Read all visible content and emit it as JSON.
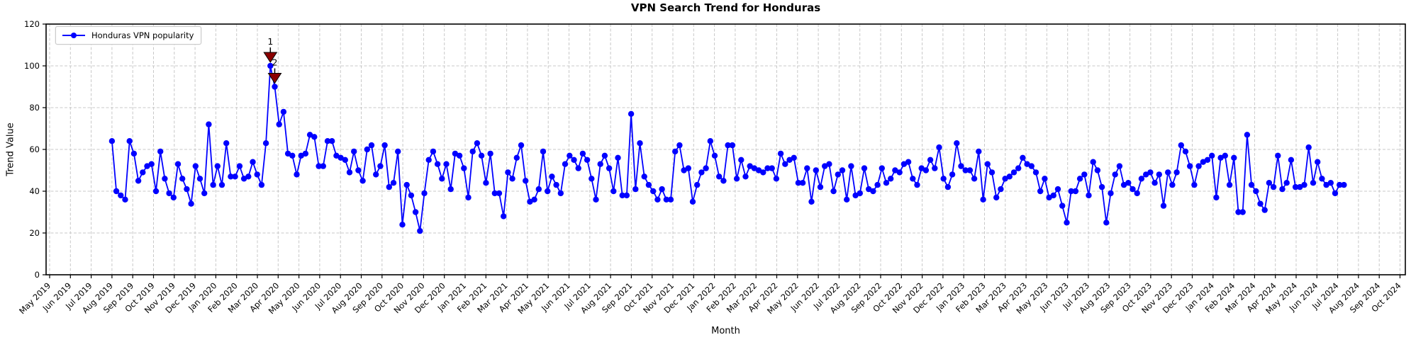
{
  "chart_data": {
    "type": "line",
    "title": "VPN Search Trend for Honduras",
    "xlabel": "Month",
    "ylabel": "Trend Value",
    "legend": {
      "label": "Honduras VPN popularity",
      "position": "upper left"
    },
    "grid": "dashed",
    "ylim": [
      0,
      120
    ],
    "y_ticks": [
      0,
      20,
      40,
      60,
      80,
      100,
      120
    ],
    "x_tick_labels": [
      "May 2019",
      "Jun 2019",
      "Jul 2019",
      "Aug 2019",
      "Sep 2019",
      "Oct 2019",
      "Nov 2019",
      "Dec 2019",
      "Jan 2020",
      "Feb 2020",
      "Mar 2020",
      "Apr 2020",
      "May 2020",
      "Jun 2020",
      "Jul 2020",
      "Aug 2020",
      "Sep 2020",
      "Oct 2020",
      "Nov 2020",
      "Dec 2020",
      "Jan 2021",
      "Feb 2021",
      "Mar 2021",
      "Apr 2021",
      "May 2021",
      "Jun 2021",
      "Jul 2021",
      "Aug 2021",
      "Sep 2021",
      "Oct 2021",
      "Nov 2021",
      "Dec 2021",
      "Jan 2022",
      "Feb 2022",
      "Mar 2022",
      "Apr 2022",
      "May 2022",
      "Jun 2022",
      "Jul 2022",
      "Aug 2022",
      "Sep 2022",
      "Oct 2022",
      "Nov 2022",
      "Dec 2022",
      "Jan 2023",
      "Feb 2023",
      "Mar 2023",
      "Apr 2023",
      "May 2023",
      "Jun 2023",
      "Jul 2023",
      "Aug 2023",
      "Sep 2023",
      "Oct 2023",
      "Nov 2023",
      "Dec 2023",
      "Jan 2024",
      "Feb 2024",
      "Mar 2024",
      "Apr 2024",
      "May 2024",
      "Jun 2024",
      "Jul 2024",
      "Aug 2024",
      "Sep 2024",
      "Oct 2024"
    ],
    "series": [
      {
        "name": "Honduras VPN popularity",
        "color": "#0000ff",
        "marker": "circle",
        "frequency": "weekly",
        "x_start_month_index": 3.0,
        "x_end_month_index": 62.3,
        "values": [
          64,
          40,
          38,
          36,
          64,
          58,
          45,
          49,
          52,
          53,
          40,
          59,
          46,
          39,
          37,
          53,
          46,
          41,
          34,
          52,
          46,
          39,
          72,
          43,
          52,
          43,
          63,
          47,
          47,
          52,
          46,
          47,
          54,
          48,
          43,
          63,
          100,
          90,
          72,
          78,
          58,
          57,
          48,
          57,
          58,
          67,
          66,
          52,
          52,
          64,
          64,
          57,
          56,
          55,
          49,
          59,
          50,
          45,
          60,
          62,
          48,
          52,
          62,
          42,
          44,
          59,
          24,
          43,
          38,
          30,
          21,
          39,
          55,
          59,
          53,
          46,
          53,
          41,
          58,
          57,
          51,
          37,
          59,
          63,
          57,
          44,
          58,
          39,
          39,
          28,
          49,
          46,
          56,
          62,
          45,
          35,
          36,
          41,
          59,
          40,
          47,
          43,
          39,
          53,
          57,
          55,
          51,
          58,
          55,
          46,
          36,
          53,
          57,
          51,
          40,
          56,
          38,
          38,
          77,
          41,
          63,
          47,
          43,
          40,
          36,
          41,
          36,
          36,
          59,
          62,
          50,
          51,
          35,
          43,
          49,
          51,
          64,
          57,
          47,
          45,
          62,
          62,
          46,
          55,
          47,
          52,
          51,
          50,
          49,
          51,
          51,
          46,
          58,
          53,
          55,
          56,
          44,
          44,
          51,
          35,
          50,
          42,
          52,
          53,
          40,
          48,
          50,
          36,
          52,
          38,
          39,
          51,
          41,
          40,
          43,
          51,
          44,
          46,
          50,
          49,
          53,
          54,
          46,
          43,
          51,
          50,
          55,
          51,
          61,
          46,
          42,
          48,
          63,
          52,
          50,
          50,
          46,
          59,
          36,
          53,
          49,
          37,
          41,
          46,
          47,
          49,
          51,
          56,
          53,
          52,
          49,
          40,
          46,
          37,
          38,
          41,
          33,
          25,
          40,
          40,
          46,
          48,
          38,
          54,
          50,
          42,
          25,
          39,
          48,
          52,
          43,
          44,
          41,
          39,
          46,
          48,
          49,
          44,
          48,
          33,
          49,
          43,
          49,
          62,
          59,
          52,
          43,
          52,
          54,
          55,
          57,
          37,
          56,
          57,
          43,
          56,
          30,
          30,
          67,
          43,
          40,
          34,
          31,
          44,
          42,
          57,
          41,
          44,
          55,
          42,
          42,
          43,
          61,
          44,
          54,
          46,
          43,
          44,
          39,
          43,
          43
        ]
      }
    ],
    "annotations": [
      {
        "label": "1",
        "point_index": 36,
        "value": 100,
        "marker": "triangle-down",
        "color": "#8b0000"
      },
      {
        "label": "2",
        "point_index": 37,
        "value": 90,
        "marker": "triangle-down",
        "color": "#8b0000"
      }
    ],
    "colors": {
      "line": "#0000ff",
      "annotation": "#8b0000",
      "grid": "#c8c8c8",
      "spine": "#000000",
      "background": "#ffffff"
    }
  }
}
